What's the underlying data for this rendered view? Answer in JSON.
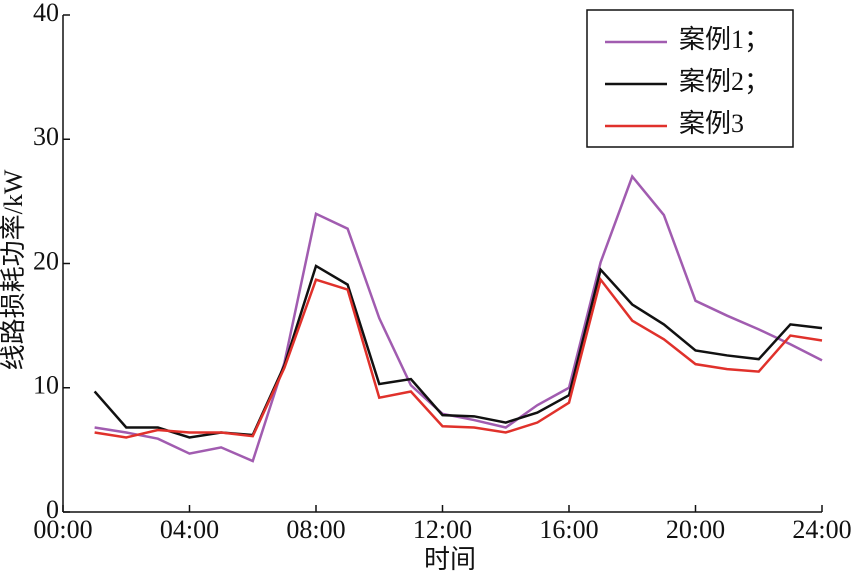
{
  "chart_data": {
    "type": "line",
    "xlabel": "时间",
    "ylabel": "线路损耗功率/kW",
    "x": [
      1,
      2,
      3,
      4,
      5,
      6,
      7,
      8,
      9,
      10,
      11,
      12,
      13,
      14,
      15,
      16,
      17,
      18,
      19,
      20,
      21,
      22,
      23,
      24
    ],
    "series": [
      {
        "name": "案例1；",
        "color": "#a15cb0",
        "values": [
          6.8,
          6.4,
          5.9,
          4.7,
          5.2,
          4.1,
          12,
          24.0,
          22.8,
          15.6,
          10.2,
          7.9,
          7.4,
          6.8,
          8.6,
          10.0,
          20.1,
          27.0,
          23.9,
          17.0,
          15.8,
          14.7,
          13.5,
          12.2
        ]
      },
      {
        "name": "案例2；",
        "color": "#111111",
        "values": [
          9.7,
          6.8,
          6.8,
          6.0,
          6.4,
          6.2,
          11.8,
          19.8,
          18.3,
          10.3,
          10.7,
          7.8,
          7.7,
          7.2,
          8.0,
          9.4,
          19.5,
          16.7,
          15.1,
          13.0,
          12.6,
          12.3,
          15.1,
          14.8
        ]
      },
      {
        "name": "案例3",
        "color": "#e0312b",
        "values": [
          6.4,
          6.0,
          6.6,
          6.4,
          6.4,
          6.1,
          11.6,
          18.7,
          17.9,
          9.2,
          9.7,
          6.9,
          6.8,
          6.4,
          7.2,
          8.8,
          18.7,
          15.4,
          13.9,
          11.9,
          11.5,
          11.3,
          14.2,
          13.8
        ]
      }
    ],
    "xlim": [
      0,
      24
    ],
    "xticks": [
      {
        "value": 0,
        "label": "00:00"
      },
      {
        "value": 4,
        "label": "04:00"
      },
      {
        "value": 8,
        "label": "08:00"
      },
      {
        "value": 12,
        "label": "12:00"
      },
      {
        "value": 16,
        "label": "16:00"
      },
      {
        "value": 20,
        "label": "20:00"
      },
      {
        "value": 24,
        "label": "24:00"
      }
    ],
    "ylim": [
      0,
      40
    ],
    "yticks": [
      0,
      10,
      20,
      30,
      40
    ],
    "grid": false,
    "legend": "upper right"
  }
}
